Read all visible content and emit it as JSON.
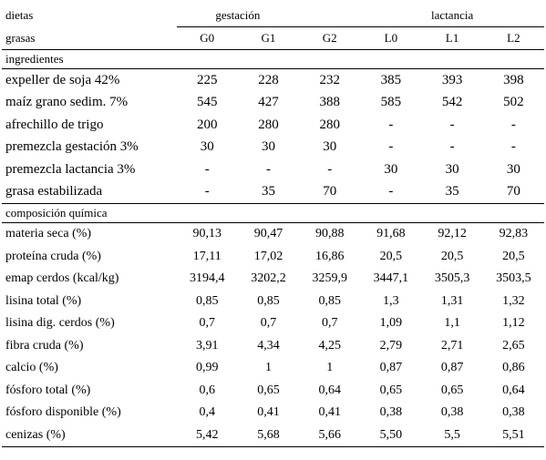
{
  "header": {
    "row1_label": "dietas",
    "row2_label": "grasas",
    "group_gestacion": "gestación",
    "group_lactancia": "lactancia",
    "columns": [
      "G0",
      "G1",
      "G2",
      "L0",
      "L1",
      "L2"
    ]
  },
  "section_ingredientes": "ingredientes",
  "ingredientes": [
    {
      "label": "expeller de soja 42%",
      "values": [
        "225",
        "228",
        "232",
        "385",
        "393",
        "398"
      ]
    },
    {
      "label": "maíz grano sedim. 7%",
      "values": [
        "545",
        "427",
        "388",
        "585",
        "542",
        "502"
      ]
    },
    {
      "label": "afrechillo de trigo",
      "values": [
        "200",
        "280",
        "280",
        "-",
        "-",
        "-"
      ]
    },
    {
      "label": "premezcla gestación 3%",
      "values": [
        "30",
        "30",
        "30",
        "-",
        "-",
        "-"
      ]
    },
    {
      "label": "premezcla lactancia 3%",
      "values": [
        "-",
        "-",
        "-",
        "30",
        "30",
        "30"
      ]
    },
    {
      "label": "grasa estabilizada",
      "values": [
        "-",
        "35",
        "70",
        "-",
        "35",
        "70"
      ]
    }
  ],
  "section_composicion": "composición química",
  "composicion": [
    {
      "label": "materia seca (%)",
      "values": [
        "90,13",
        "90,47",
        "90,88",
        "91,68",
        "92,12",
        "92,83"
      ]
    },
    {
      "label": "proteína cruda (%)",
      "values": [
        "17,11",
        "17,02",
        "16,86",
        "20,5",
        "20,5",
        "20,5"
      ]
    },
    {
      "label": "emap cerdos (kcal/kg)",
      "values": [
        "3194,4",
        "3202,2",
        "3259,9",
        "3447,1",
        "3505,3",
        "3503,5"
      ]
    },
    {
      "label": "lisina total (%)",
      "values": [
        "0,85",
        "0,85",
        "0,85",
        "1,3",
        "1,31",
        "1,32"
      ]
    },
    {
      "label": "lisina dig. cerdos (%)",
      "values": [
        "0,7",
        "0,7",
        "0,7",
        "1,09",
        "1,1",
        "1,12"
      ]
    },
    {
      "label": "fibra cruda (%)",
      "values": [
        "3,91",
        "4,34",
        "4,25",
        "2,79",
        "2,71",
        "2,65"
      ]
    },
    {
      "label": "calcio (%)",
      "values": [
        "0,99",
        "1",
        "1",
        "0,87",
        "0,87",
        "0,86"
      ]
    },
    {
      "label": "fósforo total (%)",
      "values": [
        "0,6",
        "0,65",
        "0,64",
        "0,65",
        "0,65",
        "0,64"
      ]
    },
    {
      "label": "fósforo disponible (%)",
      "values": [
        "0,4",
        "0,41",
        "0,41",
        "0,38",
        "0,38",
        "0,38"
      ]
    },
    {
      "label": "cenizas (%)",
      "values": [
        "5,42",
        "5,68",
        "5,66",
        "5,50",
        "5,5",
        "5,51"
      ]
    }
  ]
}
